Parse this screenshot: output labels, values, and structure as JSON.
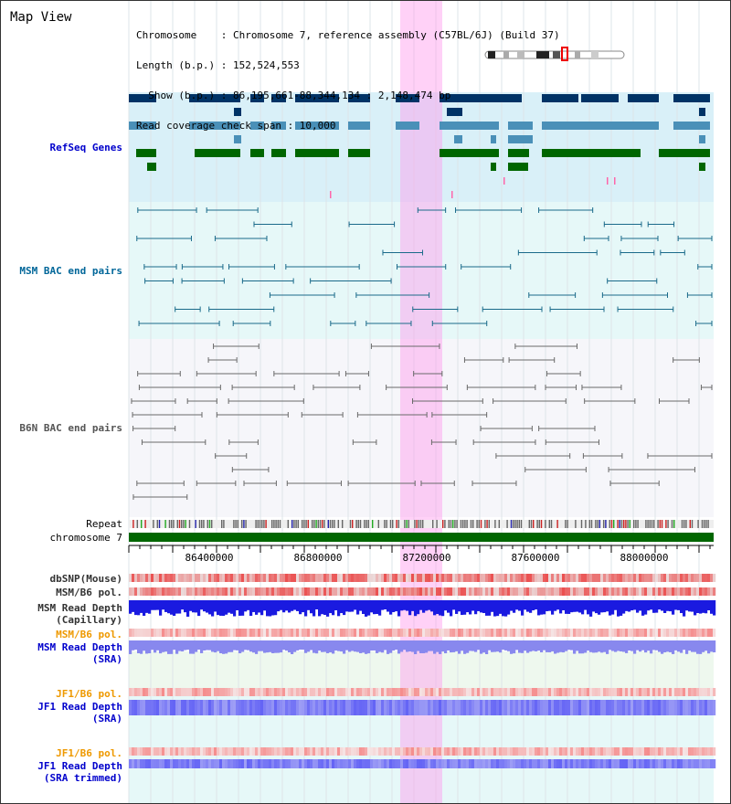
{
  "view": {
    "title": "Map View",
    "info": [
      "Chromosome    : Chromosome 7, reference assembly (C57BL/6J) (Build 37)",
      "Length (b.p.) : 152,524,553",
      "  Show (b.p.) : 86,195,661-88,344,134 : 2,148,474 bp",
      "Read coverage check span : 10,000"
    ]
  },
  "tracks": {
    "refseq": "RefSeq Genes",
    "msm_bac": "MSM BAC end pairs",
    "b6n_bac": "B6N BAC end pairs",
    "repeat": "Repeat",
    "chromosome": "chromosome 7",
    "dbsnp": "dbSNP(Mouse)",
    "msm_b6_pol_1": "MSM/B6 pol.",
    "msm_depth_cap_1": "MSM Read Depth",
    "msm_depth_cap_2": "(Capillary)",
    "msm_b6_pol_2": "MSM/B6 pol.",
    "msm_depth_sra_1": "MSM Read Depth",
    "msm_depth_sra_2": "(SRA)",
    "jf1_b6_pol_1": "JF1/B6 pol.",
    "jf1_depth_sra_1": "JF1 Read Depth",
    "jf1_depth_sra_2": "(SRA)",
    "jf1_b6_pol_2": "JF1/B6 pol.",
    "jf1_depth_trim_1": "JF1 Read Depth",
    "jf1_depth_trim_2": "(SRA trimmed)"
  },
  "ruler": {
    "ticks": [
      "86400000",
      "86800000",
      "87200000",
      "87600000",
      "88000000"
    ]
  },
  "colors": {
    "refseq_label": "#0000cc",
    "msm_label": "#006699",
    "b6n_label": "#555555",
    "pol_orange": "#ee9900",
    "depth_blue": "#0000cc",
    "highlight": "#ff99ee"
  }
}
